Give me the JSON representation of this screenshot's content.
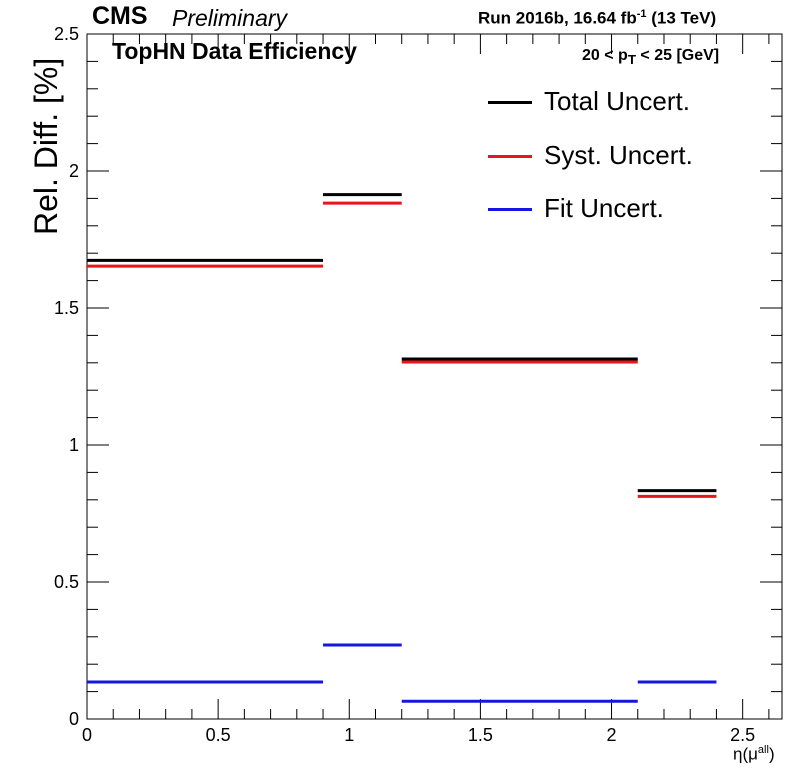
{
  "header": {
    "experiment": "CMS",
    "status": "Preliminary",
    "run_text": "Run 2016b,  16.64 fb",
    "run_sup": "-1",
    "energy": "  (13 TeV)",
    "title": "TopHN Data Efficiency",
    "bin_label": "20 < p",
    "bin_sub": "T",
    "bin_tail": " < 25 [GeV]"
  },
  "chart_data": {
    "type": "line",
    "ylabel": "Rel. Diff. [%]",
    "xlabel_main": "η(μ",
    "xlabel_sup": "all",
    "xlabel_close": ")",
    "xlim": [
      0,
      2.65
    ],
    "ylim": [
      0,
      2.5
    ],
    "x_ticks": [
      "0",
      "0.5",
      "1",
      "1.5",
      "2",
      "2.5"
    ],
    "y_ticks": [
      "0",
      "0.5",
      "1",
      "1.5",
      "2",
      "2.5"
    ],
    "bins": [
      [
        0,
        0.9
      ],
      [
        0.9,
        1.2
      ],
      [
        1.2,
        2.1
      ],
      [
        2.1,
        2.4
      ]
    ],
    "series": [
      {
        "name": "Total Uncert.",
        "color": "#000000",
        "values": [
          1.67,
          1.91,
          1.31,
          0.83
        ]
      },
      {
        "name": "Syst. Uncert.",
        "color": "#e8151b",
        "values": [
          1.66,
          1.89,
          1.31,
          0.82
        ]
      },
      {
        "name": "Fit Uncert.",
        "color": "#1517e0",
        "values": [
          0.135,
          0.27,
          0.065,
          0.135
        ]
      }
    ]
  }
}
